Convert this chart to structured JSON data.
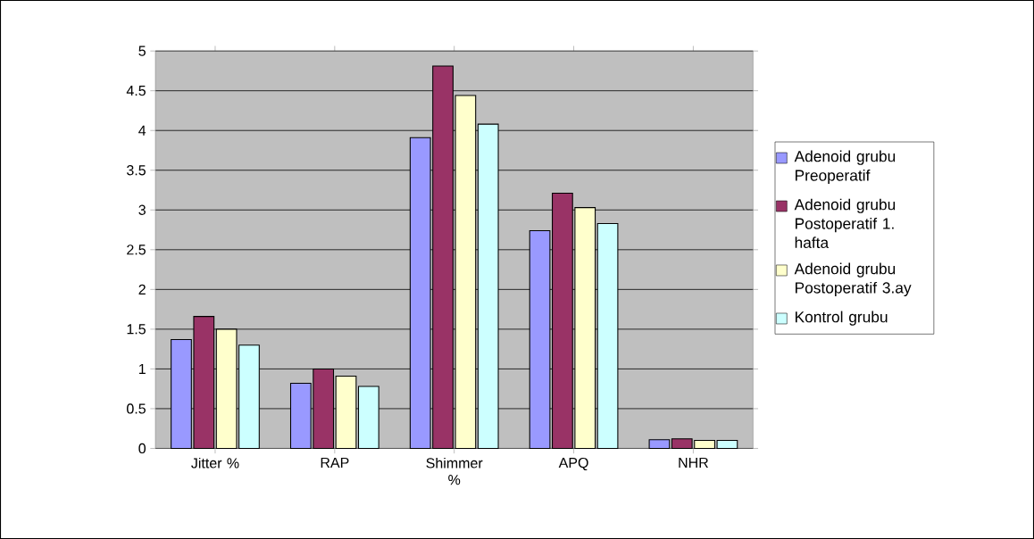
{
  "chart_data": {
    "type": "bar",
    "categories": [
      "Jitter %",
      "RAP",
      "Shimmer %",
      "APQ",
      "NHR"
    ],
    "series": [
      {
        "name": "Adenoid grubu Preoperatif",
        "color": "#9999ff",
        "values": [
          1.37,
          0.82,
          3.91,
          2.74,
          0.11
        ]
      },
      {
        "name": "Adenoid grubu Postoperatif 1. hafta",
        "color": "#993366",
        "values": [
          1.66,
          1.0,
          4.81,
          3.21,
          0.12
        ]
      },
      {
        "name": "Adenoid grubu Postoperatif 3.ay",
        "color": "#ffffcc",
        "values": [
          1.5,
          0.91,
          4.44,
          3.03,
          0.1
        ]
      },
      {
        "name": "Kontrol grubu",
        "color": "#ccffff",
        "values": [
          1.3,
          0.78,
          4.08,
          2.83,
          0.1
        ]
      }
    ],
    "ylim": [
      0,
      5
    ],
    "yticks": [
      0,
      0.5,
      1,
      1.5,
      2,
      2.5,
      3,
      3.5,
      4,
      4.5,
      5
    ],
    "grid": "y",
    "legend": "right"
  }
}
